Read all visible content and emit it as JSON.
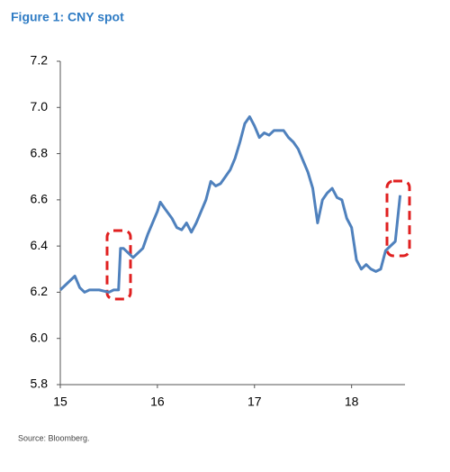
{
  "chart_data": {
    "type": "line",
    "title": "Figure 1: CNY spot",
    "source": "Source: Bloomberg.",
    "x": [
      15.0,
      15.05,
      15.1,
      15.15,
      15.2,
      15.25,
      15.3,
      15.4,
      15.5,
      15.55,
      15.6,
      15.62,
      15.65,
      15.7,
      15.75,
      15.8,
      15.85,
      15.9,
      15.95,
      16.0,
      16.03,
      16.08,
      16.15,
      16.2,
      16.25,
      16.3,
      16.35,
      16.4,
      16.45,
      16.5,
      16.55,
      16.6,
      16.65,
      16.7,
      16.75,
      16.8,
      16.85,
      16.9,
      16.95,
      17.0,
      17.05,
      17.1,
      17.15,
      17.2,
      17.3,
      17.35,
      17.4,
      17.45,
      17.5,
      17.55,
      17.6,
      17.65,
      17.7,
      17.75,
      17.8,
      17.85,
      17.9,
      17.95,
      18.0,
      18.05,
      18.1,
      18.15,
      18.2,
      18.25,
      18.3,
      18.35,
      18.4,
      18.45,
      18.5
    ],
    "series": [
      {
        "name": "CNY spot",
        "color": "#4f81bd",
        "values": [
          6.21,
          6.23,
          6.25,
          6.27,
          6.22,
          6.2,
          6.21,
          6.21,
          6.2,
          6.21,
          6.21,
          6.39,
          6.39,
          6.37,
          6.35,
          6.37,
          6.39,
          6.45,
          6.5,
          6.55,
          6.59,
          6.56,
          6.52,
          6.48,
          6.47,
          6.5,
          6.46,
          6.5,
          6.55,
          6.6,
          6.68,
          6.66,
          6.67,
          6.7,
          6.73,
          6.78,
          6.85,
          6.93,
          6.96,
          6.92,
          6.87,
          6.89,
          6.88,
          6.9,
          6.9,
          6.87,
          6.85,
          6.82,
          6.77,
          6.72,
          6.65,
          6.5,
          6.6,
          6.63,
          6.65,
          6.61,
          6.6,
          6.52,
          6.48,
          6.34,
          6.3,
          6.32,
          6.3,
          6.29,
          6.3,
          6.38,
          6.4,
          6.42,
          6.62
        ]
      }
    ],
    "xlim": [
      15,
      18.55
    ],
    "xticks": [
      15,
      16,
      17,
      18
    ],
    "ylim": [
      5.8,
      7.2
    ],
    "yticks": [
      5.8,
      {
        "value": 6,
        "label": "6.0"
      },
      6.2,
      6.4,
      6.6,
      6.8,
      {
        "value": 7,
        "label": "7.0"
      },
      7.2
    ]
  }
}
